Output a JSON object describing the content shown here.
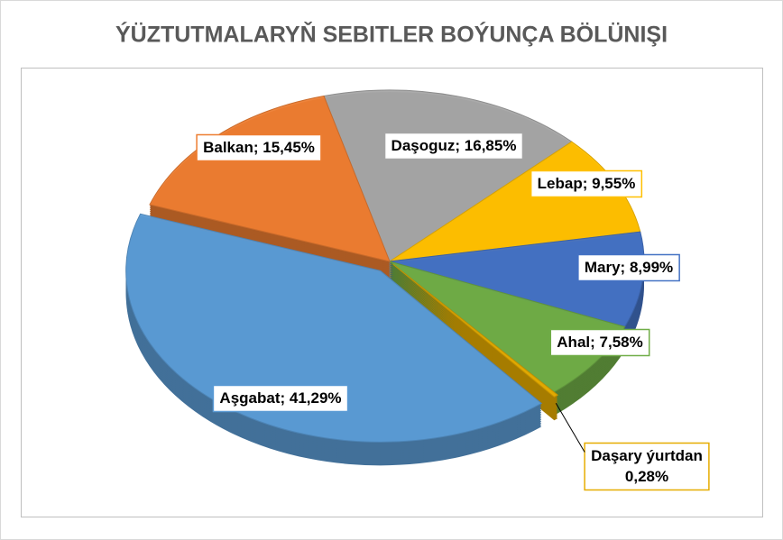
{
  "chart_data": {
    "type": "pie3d",
    "title": "ÝÜZTUTMALARYŇ SEBITLER BOÝUNÇA BÖLÜNIŞI",
    "label_separator": "; ",
    "categories": [
      "Daşoguz",
      "Lebap",
      "Mary",
      "Ahal",
      "Daşary ýurtdan",
      "Aşgabat",
      "Balkan"
    ],
    "values": [
      16.85,
      9.55,
      8.99,
      7.58,
      0.28,
      41.29,
      15.45
    ],
    "value_labels": [
      "16,85%",
      "9,55%",
      "8,99%",
      "7,58%",
      "0,28%",
      "41,29%",
      "15,45%"
    ],
    "colors": [
      "#a5a5a5",
      "#ffc000",
      "#4472c4",
      "#70ad47",
      "#e6ac00",
      "#5b9bd5",
      "#ed7d31"
    ]
  }
}
